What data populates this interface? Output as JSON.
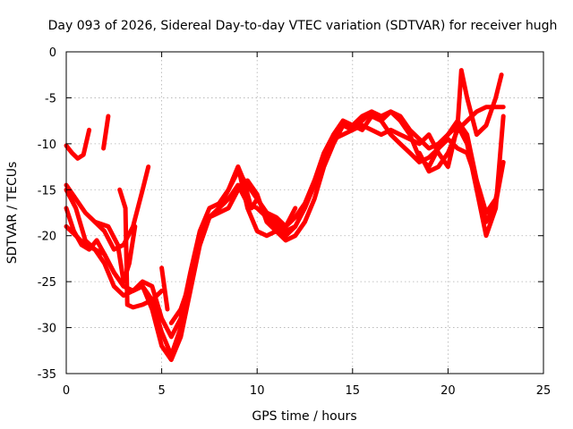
{
  "chart_data": {
    "type": "scatter",
    "title": "Day 093 of 2026, Sidereal Day-to-day VTEC variation (SDTVAR) for receiver hugh",
    "xlabel": "GPS time / hours",
    "ylabel": "SDTVAR / TECUs",
    "xlim": [
      0,
      25
    ],
    "ylim": [
      -35,
      0
    ],
    "xticks": [
      "0",
      "5",
      "10",
      "15",
      "20",
      "25"
    ],
    "yticks": [
      "0",
      "-5",
      "-10",
      "-15",
      "-20",
      "-25",
      "-30",
      "-35"
    ],
    "grid": true,
    "color": "#ff0000",
    "marker": "plus",
    "series": [
      {
        "x": [
          0,
          0.3,
          0.6,
          0.9,
          1.2
        ],
        "y": [
          -10.2,
          -11,
          -11.6,
          -11.2,
          -8.5
        ]
      },
      {
        "x": [
          1.95,
          2.2
        ],
        "y": [
          -10.5,
          -7
        ]
      },
      {
        "x": [
          0,
          0.5,
          1,
          1.5,
          2,
          2.5,
          3,
          3.5,
          4,
          4.3
        ],
        "y": [
          -14.5,
          -16,
          -17.5,
          -18.5,
          -19.5,
          -21.5,
          -21,
          -19,
          -15,
          -12.5
        ]
      },
      {
        "x": [
          0,
          0.4,
          0.8,
          1.2,
          1.6,
          2,
          2.5,
          3,
          3.5,
          4,
          4.5,
          5,
          5.5,
          6,
          6.5,
          7,
          7.5,
          8,
          8.5,
          9,
          9.5,
          10,
          10.5,
          11,
          11.5,
          12,
          12.5,
          13,
          13.5,
          14,
          14.5,
          15,
          15.5,
          16,
          16.5,
          17,
          17.5,
          18,
          18.5,
          19,
          19.5,
          20,
          20.5,
          21,
          21.5,
          22,
          22.5,
          22.8
        ],
        "y": [
          -17,
          -19.5,
          -21,
          -21.5,
          -20.5,
          -22,
          -24,
          -25.5,
          -26,
          -25.5,
          -28,
          -32,
          -33.5,
          -31,
          -26,
          -21,
          -18,
          -17,
          -16,
          -14.5,
          -16.5,
          -17,
          -18,
          -19,
          -19.5,
          -19,
          -17,
          -14.5,
          -11.5,
          -9,
          -7.5,
          -8,
          -8.5,
          -7,
          -7.5,
          -9,
          -10,
          -11,
          -12,
          -11.5,
          -10.5,
          -9.5,
          -10.5,
          -11,
          -14,
          -17.5,
          -16,
          -13
        ]
      },
      {
        "x": [
          0,
          0.5,
          1,
          1.5,
          2,
          2.5,
          3,
          3.5,
          4,
          4.5,
          5,
          5.5,
          6,
          6.5,
          7,
          7.5,
          8,
          8.5,
          9,
          9.5,
          10,
          10.5,
          11,
          11.5,
          12,
          12.5,
          13,
          13.5,
          14,
          14.5,
          15,
          15.5,
          16,
          16.5,
          17,
          17.5,
          18,
          18.5,
          19,
          19.5,
          20,
          20.5,
          21,
          21.5,
          22,
          22.5,
          22.9
        ],
        "y": [
          -15,
          -17,
          -20.5,
          -21.5,
          -23,
          -25.5,
          -26.5,
          -26,
          -25.5,
          -27,
          -30.5,
          -33,
          -30,
          -25,
          -20.5,
          -18,
          -17.5,
          -17,
          -15,
          -14,
          -15.5,
          -18.5,
          -19.5,
          -20.5,
          -20,
          -18.5,
          -16,
          -12.5,
          -10,
          -8,
          -8.5,
          -7.5,
          -6.5,
          -7,
          -6.5,
          -7,
          -8.5,
          -9.5,
          -10.5,
          -10,
          -9,
          -8,
          -10,
          -15,
          -20,
          -17,
          -7
        ]
      },
      {
        "x": [
          0,
          0.5,
          1,
          1.5,
          2,
          2.5,
          3,
          3.5,
          4,
          4.5,
          5,
          5.5,
          6,
          6.5,
          7,
          7.5,
          8,
          8.5,
          9,
          9.5,
          10,
          10.5,
          11,
          11.5,
          12,
          12.5,
          13,
          13.5,
          14,
          14.5,
          15,
          15.5,
          16,
          16.5,
          17,
          17.5,
          18,
          18.5,
          19,
          19.5,
          20,
          20.5,
          21,
          21.5,
          22,
          22.5,
          22.9
        ],
        "y": [
          -19,
          -20,
          -21,
          -21.5,
          -22,
          -24,
          -25.5,
          -26,
          -25,
          -25.5,
          -29,
          -31,
          -29,
          -24,
          -19.5,
          -17,
          -16.5,
          -15,
          -13,
          -14.5,
          -16,
          -17.5,
          -18,
          -19,
          -18,
          -16.5,
          -14,
          -11,
          -9,
          -7.5,
          -8,
          -7,
          -6.5,
          -7.5,
          -6.5,
          -7.5,
          -9,
          -11.5,
          -12.5,
          -10.5,
          -9,
          -7.5,
          -9,
          -14,
          -18.5,
          -16.5,
          -12
        ]
      },
      {
        "x": [
          1.5,
          2.2,
          2.7,
          3,
          3.3,
          3.6
        ],
        "y": [
          -18.5,
          -19,
          -21,
          -25,
          -23,
          -19
        ]
      },
      {
        "x": [
          2.8,
          3.1,
          3.2,
          3.5,
          4,
          4.5,
          5
        ],
        "y": [
          -15,
          -17,
          -27.5,
          -27.8,
          -27.5,
          -27,
          -26
        ]
      },
      {
        "x": [
          5.0,
          5.3
        ],
        "y": [
          -23.5,
          -28
        ]
      },
      {
        "x": [
          5.5,
          6,
          6.5,
          7,
          7.5,
          8,
          8.5,
          9,
          9.5,
          10,
          10.5,
          11,
          11.5,
          12
        ],
        "y": [
          -29.5,
          -28,
          -25,
          -21,
          -18,
          -17,
          -15,
          -12.5,
          -17,
          -19.5,
          -20,
          -19.5,
          -20,
          -19
        ]
      },
      {
        "x": [
          8.7,
          9,
          9.3,
          9.7,
          10,
          10.5,
          11,
          11.5,
          12
        ],
        "y": [
          -14,
          -12.5,
          -14,
          -17,
          -16,
          -17.5,
          -18.5,
          -19,
          -17
        ]
      },
      {
        "x": [
          14,
          14.5,
          15,
          15.5,
          16,
          16.5,
          17,
          17.5,
          18,
          18.5,
          19,
          19.5,
          20,
          20.5,
          20.7,
          21,
          21.5,
          22,
          22.5,
          22.8
        ],
        "y": [
          -9.5,
          -9,
          -8.5,
          -8,
          -8.5,
          -9,
          -8.5,
          -9,
          -9.5,
          -10,
          -9,
          -11,
          -12.5,
          -8,
          -2,
          -5,
          -9,
          -8,
          -5,
          -2.5
        ]
      },
      {
        "x": [
          18.5,
          19,
          19.5,
          20,
          20.5,
          21,
          21.5,
          22,
          22.5,
          22.9
        ],
        "y": [
          -11,
          -13,
          -12.5,
          -11,
          -8.5,
          -7.5,
          -6.5,
          -6,
          -6,
          -6
        ]
      }
    ]
  }
}
